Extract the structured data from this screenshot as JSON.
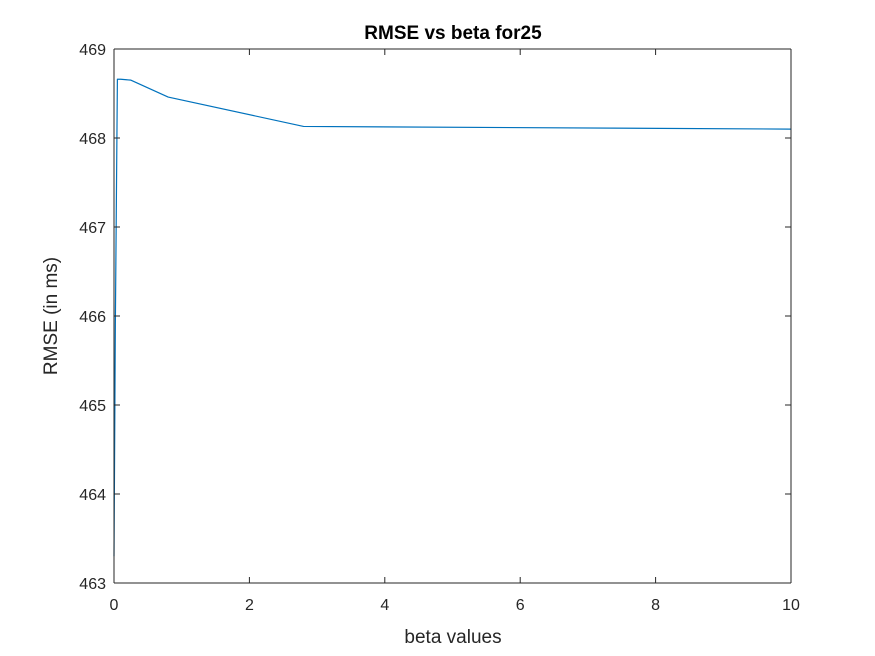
{
  "chart_data": {
    "type": "line",
    "title": "RMSE vs beta for25",
    "xlabel": "beta values",
    "ylabel": "RMSE (in ms)",
    "xlim": [
      0,
      10
    ],
    "ylim": [
      463,
      469
    ],
    "xticks": [
      0,
      2,
      4,
      6,
      8,
      10
    ],
    "yticks": [
      463,
      464,
      465,
      466,
      467,
      468,
      469
    ],
    "grid": false,
    "series": [
      {
        "color": "#0072BD",
        "x": [
          0,
          0.02,
          0.05,
          0.1,
          0.25,
          0.8,
          2.8,
          10
        ],
        "y": [
          463.3,
          465.9,
          468.66,
          468.66,
          468.65,
          468.46,
          468.13,
          468.1
        ]
      }
    ]
  }
}
